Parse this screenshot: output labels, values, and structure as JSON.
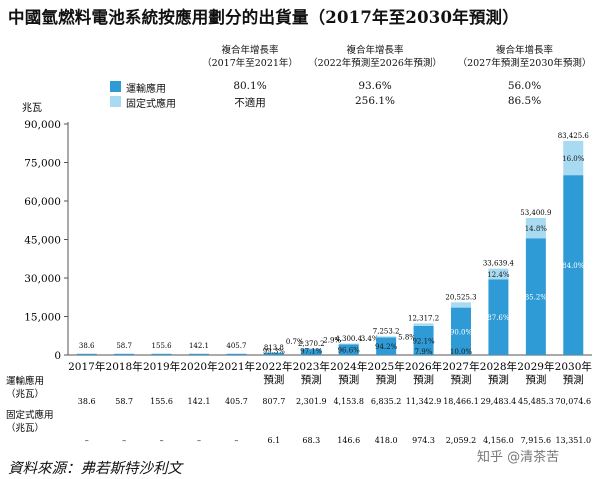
{
  "title": "中國氫燃料電池系統按應用劃分的出貨量（2017年至2030年預測）",
  "cagr": {
    "headers": [
      [
        "複合年增長率",
        "（2017年至2021年）"
      ],
      [
        "複合年增長率",
        "（2022年預測至2026年預測）"
      ],
      [
        "複合年增長率",
        "（2027年預測至2030年預測）"
      ]
    ],
    "rows": [
      {
        "label": "運輸應用",
        "values": [
          "80.1%",
          "93.6%",
          "56.0%"
        ]
      },
      {
        "label": "固定式應用",
        "values": [
          "不適用",
          "256.1%",
          "86.5%"
        ]
      }
    ]
  },
  "colors": {
    "transport": "#2e9bd6",
    "stationary": "#a8daf2"
  },
  "table": {
    "transport_label": "運輸應用",
    "transport_label2": "（兆瓦）",
    "stationary_label": "固定式應用",
    "stationary_label2": "（兆瓦）",
    "transport_values": [
      "38.6",
      "58.7",
      "155.6",
      "142.1",
      "405.7",
      "807.7",
      "2,301.9",
      "4,153.8",
      "6,835.2",
      "11,342.9",
      "18,466.1",
      "29,483.4",
      "45,485.3",
      "70,074.6"
    ],
    "stationary_values": [
      "–",
      "–",
      "–",
      "–",
      "–",
      "6.1",
      "68.3",
      "146.6",
      "418.0",
      "974.3",
      "2,059.2",
      "4,156.0",
      "7,915.6",
      "13,351.0"
    ]
  },
  "source": "資料來源：弗若斯特沙利文",
  "watermark": "知乎 @清茶苦",
  "chart_data": {
    "type": "bar",
    "stacked": true,
    "ylabel": "兆瓦",
    "ylim": [
      0,
      90000
    ],
    "yticks": [
      "0",
      "15,000",
      "30,000",
      "45,000",
      "60,000",
      "75,000",
      "90,000"
    ],
    "grid": false,
    "legend_position": "top-left",
    "categories": [
      "2017年",
      "2018年",
      "2019年",
      "2020年",
      "2021年",
      "2022年\n預測",
      "2023年\n預測",
      "2024年\n預測",
      "2025年\n預測",
      "2026年\n預測",
      "2027年\n預測",
      "2028年\n預測",
      "2029年\n預測",
      "2030年\n預測"
    ],
    "series": [
      {
        "name": "運輸應用",
        "values": [
          38.6,
          58.7,
          155.6,
          142.1,
          405.7,
          807.7,
          2301.9,
          4153.8,
          6835.2,
          11342.9,
          18466.1,
          29483.4,
          45485.3,
          70074.6
        ]
      },
      {
        "name": "固定式應用",
        "values": [
          0,
          0,
          0,
          0,
          0,
          6.1,
          68.3,
          146.6,
          418.0,
          974.3,
          2059.2,
          4156.0,
          7915.6,
          13351.0
        ]
      }
    ],
    "totals": [
      "38.6",
      "58.7",
      "155.6",
      "142.1",
      "405.7",
      "813.8",
      "2,370.2",
      "4,300.4",
      "7,253.2",
      "12,317.2",
      "20,525.3",
      "33,639.4",
      "53,400.9",
      "83,425.6"
    ],
    "transport_share": [
      "",
      "",
      "",
      "",
      "",
      "99.3%",
      "97.1%",
      "96.6%",
      "94.2%",
      "92.1%",
      "90.0%",
      "87.6%",
      "85.2%",
      "84.0%"
    ],
    "stationary_share": [
      "",
      "",
      "",
      "",
      "",
      "0.7%",
      "2.9%",
      "3.4%",
      "5.8%",
      "7.9%",
      "10.0%",
      "12.4%",
      "14.8%",
      "16.0%"
    ]
  }
}
